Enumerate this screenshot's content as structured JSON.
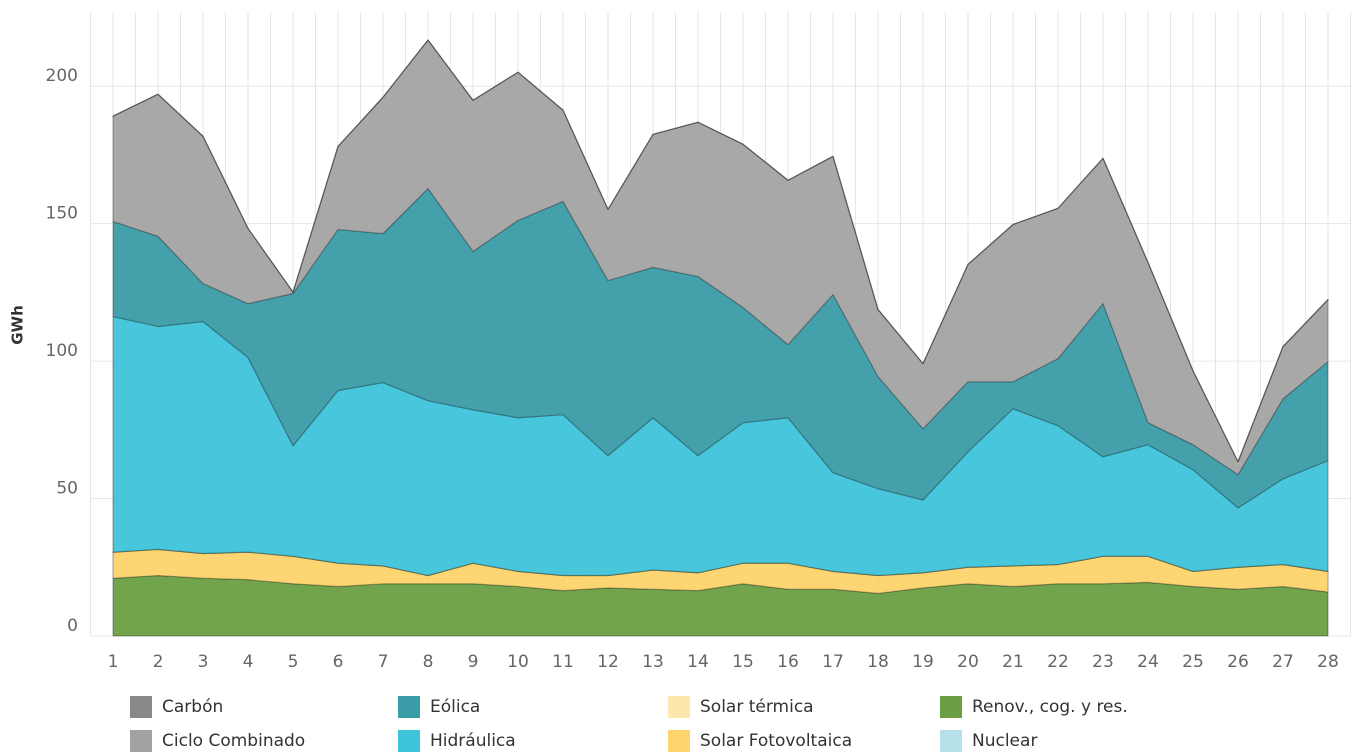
{
  "chart_data": {
    "type": "stacked_area",
    "y_label": "GWh",
    "x": [
      1,
      2,
      3,
      4,
      5,
      6,
      7,
      8,
      9,
      10,
      11,
      12,
      13,
      14,
      15,
      16,
      17,
      18,
      19,
      20,
      21,
      22,
      23,
      24,
      25,
      26,
      27,
      28
    ],
    "xlim": [
      0.5,
      28.5
    ],
    "ylim": [
      0,
      227
    ],
    "yticks": [
      0,
      50,
      100,
      150,
      200
    ],
    "grid": true,
    "legend": "bottom",
    "series": [
      {
        "name": "Renov., cog. y res.",
        "color": "#6a9f45",
        "values": [
          21,
          22,
          21,
          20.5,
          19,
          18,
          19,
          19,
          19,
          18,
          16.5,
          17.5,
          17,
          16.5,
          19,
          17,
          17,
          15.5,
          17.5,
          19,
          18,
          19,
          19,
          19.5,
          18,
          17,
          18,
          16
        ]
      },
      {
        "name": "Solar Fotovoltaica",
        "color": "#fdd36b",
        "values": [
          9.5,
          9.5,
          9,
          10,
          10,
          8.5,
          6.5,
          3,
          7.5,
          5.5,
          5.5,
          4.5,
          7,
          6.5,
          7.5,
          9.5,
          6.5,
          6.5,
          5.5,
          6,
          7.5,
          7,
          10,
          9.5,
          5.5,
          8,
          8,
          7.5
        ]
      },
      {
        "name": "Solar térmica",
        "color": "#fde7ad",
        "values": [
          0,
          0,
          0,
          0,
          0,
          0,
          0,
          0,
          0,
          0,
          0,
          0,
          0,
          0,
          0,
          0,
          0,
          0,
          0,
          0,
          0,
          0,
          0,
          0,
          0,
          0,
          0,
          0
        ]
      },
      {
        "name": "Hidráulica",
        "color": "#3dc3da",
        "values": [
          85.7,
          81.1,
          84.4,
          70.8,
          40.2,
          62.8,
          66.7,
          63.6,
          55.8,
          55.9,
          58.5,
          43.6,
          55.4,
          42.6,
          51.1,
          52.9,
          35.9,
          31.6,
          26.5,
          42,
          57.2,
          50.5,
          36.2,
          40.6,
          37,
          21.6,
          31.2,
          40.3
        ]
      },
      {
        "name": "Eólica",
        "color": "#3a9ca6",
        "values": [
          34.6,
          32.8,
          13.8,
          19.6,
          55.4,
          58.6,
          54.2,
          77.2,
          57.6,
          71.8,
          77.6,
          63.7,
          54.7,
          65.2,
          41.9,
          26.6,
          64.8,
          40.8,
          25.9,
          25.5,
          9.8,
          24.4,
          55.7,
          8,
          9.1,
          12.1,
          29.1,
          36
        ]
      },
      {
        "name": "Ciclo Combinado",
        "color": "#a3a3a3",
        "values": [
          38.3,
          51.7,
          53.6,
          27.4,
          0.5,
          30.2,
          49.6,
          54,
          55,
          53.9,
          33.2,
          25.9,
          48.4,
          56.1,
          59.4,
          59.8,
          50.3,
          24.4,
          23.7,
          42.7,
          57.2,
          54.7,
          52.9,
          58.3,
          26.9,
          4.7,
          19,
          22.6
        ]
      },
      {
        "name": "Carbón",
        "color": "#888888",
        "values": [
          0,
          0,
          0,
          0,
          0,
          0,
          0,
          0,
          0,
          0,
          0,
          0,
          0,
          0,
          0,
          0,
          0,
          0,
          0,
          0,
          0,
          0,
          0,
          0,
          0,
          0,
          0,
          0
        ]
      },
      {
        "name": "Nuclear",
        "color": "#b6e0ea",
        "values": [
          0,
          0,
          0,
          0,
          0,
          0,
          0,
          0,
          0,
          0,
          0,
          0,
          0,
          0,
          0,
          0,
          0,
          0,
          0,
          0,
          0,
          0,
          0,
          0,
          0,
          0,
          0,
          0
        ]
      }
    ]
  }
}
